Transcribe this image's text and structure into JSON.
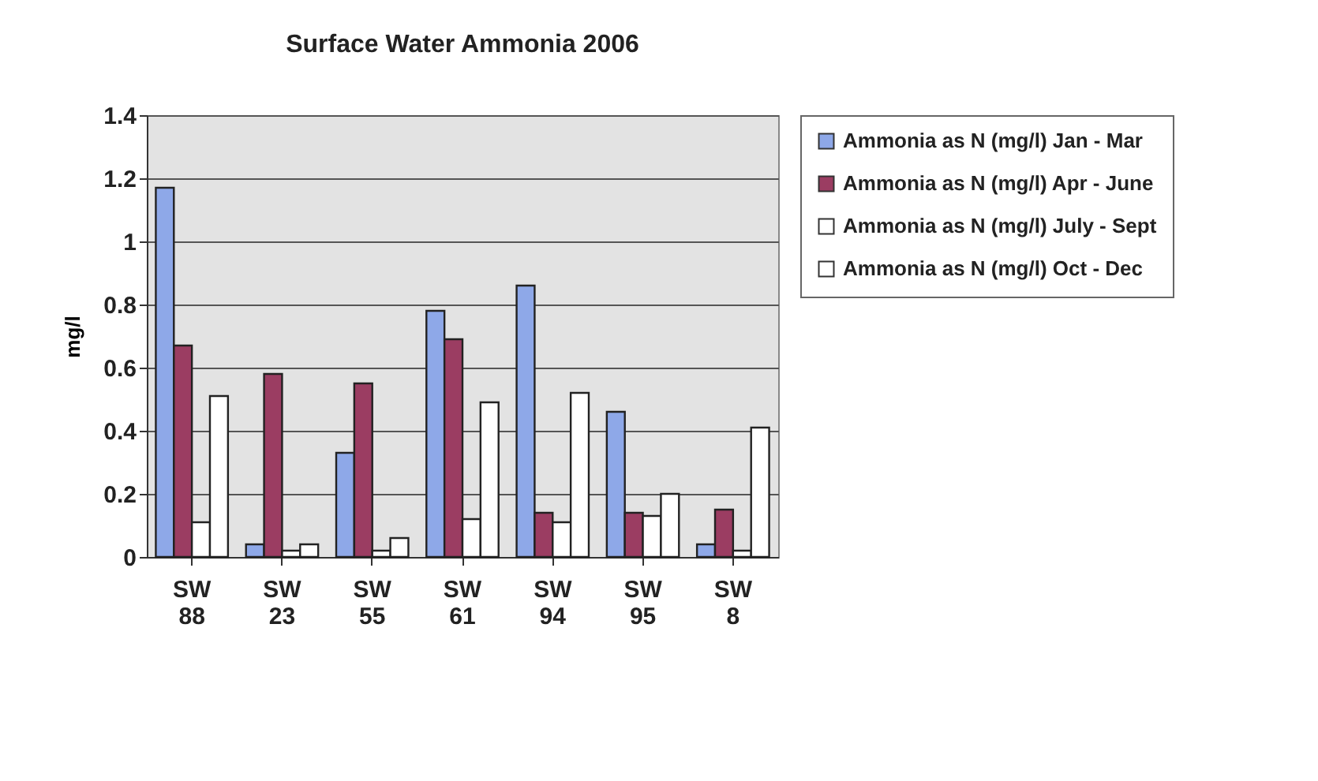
{
  "chart_data": {
    "type": "bar",
    "title": "Surface Water Ammonia 2006",
    "ylabel": "mg/l",
    "categories": [
      "SW 88",
      "SW 23",
      "SW 55",
      "SW 61",
      "SW 94",
      "SW 95",
      "SW 8"
    ],
    "series": [
      {
        "name": "Ammonia as N (mg/l) Jan - Mar",
        "color": "#8ea8e8",
        "values": [
          1.17,
          0.04,
          0.33,
          0.78,
          0.86,
          0.46,
          0.04
        ]
      },
      {
        "name": "Ammonia as N (mg/l) Apr - June",
        "color": "#9b3d62",
        "values": [
          0.67,
          0.58,
          0.55,
          0.69,
          0.14,
          0.14,
          0.15
        ]
      },
      {
        "name": "Ammonia as N (mg/l) July - Sept",
        "color": "#ffffff",
        "values": [
          0.11,
          0.02,
          0.02,
          0.12,
          0.11,
          0.13,
          0.02
        ]
      },
      {
        "name": "Ammonia as N (mg/l) Oct - Dec",
        "color": "#ffffff",
        "values": [
          0.51,
          0.04,
          0.06,
          0.49,
          0.52,
          0.2,
          0.41
        ]
      }
    ],
    "ylim": [
      0,
      1.4
    ],
    "yticks": [
      0,
      0.2,
      0.4,
      0.6,
      0.8,
      1,
      1.2,
      1.4
    ],
    "grid": "y",
    "legend": "right"
  }
}
